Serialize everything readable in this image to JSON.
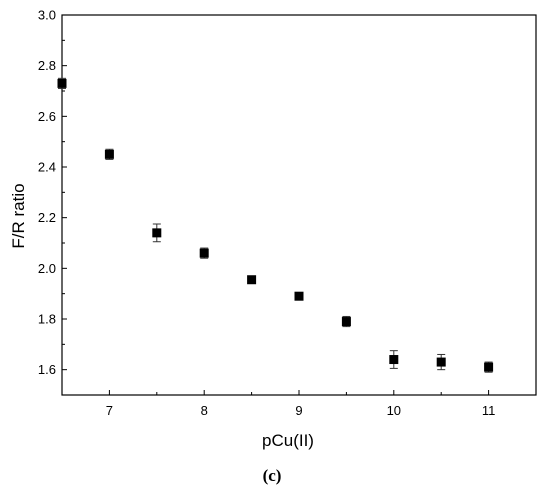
{
  "chart_data": {
    "type": "scatter",
    "xlabel": "pCu(II)",
    "ylabel": "F/R ratio",
    "xlim": [
      6.5,
      11.5
    ],
    "ylim": [
      1.5,
      3.0
    ],
    "x_ticks": [
      "7",
      "8",
      "9",
      "10",
      "11"
    ],
    "y_ticks": [
      "1.6",
      "1.8",
      "2.0",
      "2.2",
      "2.4",
      "2.6",
      "2.8",
      "3.0"
    ],
    "grid": false,
    "marker": "square",
    "marker_color": "#000000",
    "points": [
      {
        "x": 6.5,
        "y": 2.73,
        "err": 0.02
      },
      {
        "x": 7.0,
        "y": 2.45,
        "err": 0.02
      },
      {
        "x": 7.5,
        "y": 2.14,
        "err": 0.035
      },
      {
        "x": 8.0,
        "y": 2.06,
        "err": 0.02
      },
      {
        "x": 8.5,
        "y": 1.955,
        "err": 0.008
      },
      {
        "x": 9.0,
        "y": 1.89,
        "err": 0.008
      },
      {
        "x": 9.5,
        "y": 1.79,
        "err": 0.02
      },
      {
        "x": 10.0,
        "y": 1.64,
        "err": 0.035
      },
      {
        "x": 10.5,
        "y": 1.63,
        "err": 0.03
      },
      {
        "x": 11.0,
        "y": 1.61,
        "err": 0.02
      }
    ]
  },
  "caption": "(c)"
}
